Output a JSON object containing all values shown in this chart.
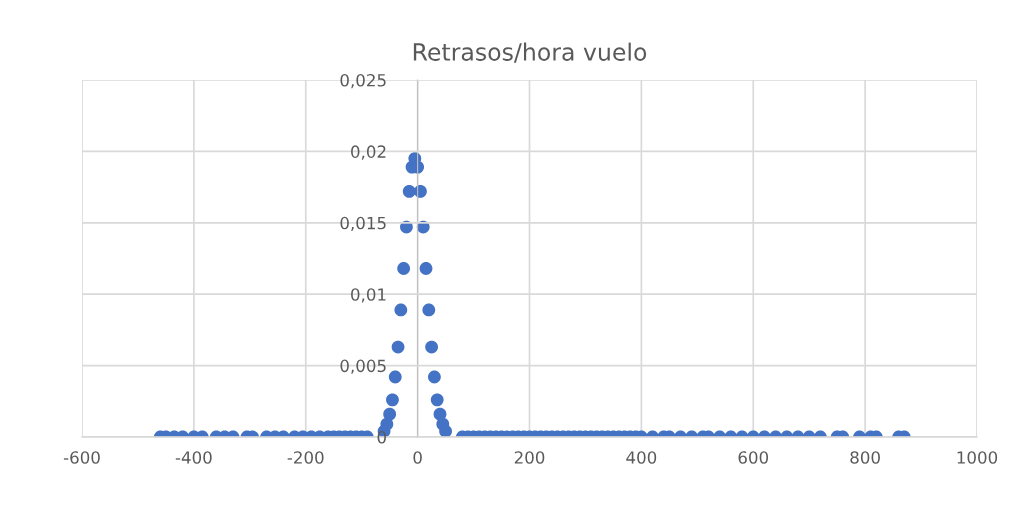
{
  "chart_data": {
    "type": "scatter",
    "title": "Retrasos/hora vuelo",
    "x": [
      -460,
      -450,
      -435,
      -420,
      -400,
      -385,
      -360,
      -345,
      -330,
      -305,
      -295,
      -270,
      -255,
      -240,
      -220,
      -205,
      -190,
      -175,
      -160,
      -150,
      -140,
      -130,
      -120,
      -110,
      -100,
      -90,
      -60,
      -55,
      -50,
      -45,
      -40,
      -35,
      -30,
      -25,
      -20,
      -15,
      -10,
      -5,
      0,
      5,
      10,
      15,
      20,
      25,
      30,
      35,
      40,
      45,
      50,
      80,
      90,
      100,
      110,
      120,
      130,
      140,
      150,
      160,
      170,
      180,
      190,
      200,
      210,
      220,
      230,
      240,
      250,
      260,
      270,
      280,
      290,
      300,
      310,
      320,
      330,
      340,
      350,
      360,
      370,
      380,
      390,
      400,
      420,
      440,
      450,
      470,
      490,
      510,
      520,
      540,
      560,
      580,
      600,
      620,
      640,
      660,
      680,
      700,
      720,
      750,
      760,
      790,
      810,
      820,
      860,
      870
    ],
    "values": [
      0,
      0,
      0,
      0,
      0,
      0,
      0,
      0,
      0,
      0,
      0,
      0,
      0,
      0,
      0,
      0,
      0,
      0,
      0,
      0,
      0,
      0,
      0,
      0,
      0,
      0,
      0.0004,
      0.0009,
      0.0016,
      0.0026,
      0.0042,
      0.0063,
      0.0089,
      0.0118,
      0.0147,
      0.0172,
      0.0189,
      0.0195,
      0.0189,
      0.0172,
      0.0147,
      0.0118,
      0.0089,
      0.0063,
      0.0042,
      0.0026,
      0.0016,
      0.0009,
      0.0004,
      0,
      0,
      0,
      0,
      0,
      0,
      0,
      0,
      0,
      0,
      0,
      0,
      0,
      0,
      0,
      0,
      0,
      0,
      0,
      0,
      0,
      0,
      0,
      0,
      0,
      0,
      0,
      0,
      0,
      0,
      0,
      0,
      0,
      0,
      0,
      0,
      0,
      0,
      0,
      0,
      0,
      0,
      0,
      0,
      0,
      0,
      0,
      0,
      0,
      0,
      0,
      0,
      0,
      0,
      0,
      0,
      0
    ],
    "color": "#4472c4",
    "marker": "circle",
    "xlim": [
      -600,
      1000
    ],
    "xticks": [
      -600,
      -400,
      -200,
      0,
      200,
      400,
      600,
      800,
      1000
    ],
    "ylim": [
      0,
      0.025
    ],
    "yticks": [
      {
        "value": 0,
        "label": "0"
      },
      {
        "value": 0.005,
        "label": "0,005"
      },
      {
        "value": 0.01,
        "label": "0,01"
      },
      {
        "value": 0.015,
        "label": "0,015"
      },
      {
        "value": 0.02,
        "label": "0,02"
      },
      {
        "value": 0.025,
        "label": "0,025"
      }
    ],
    "grid": true
  }
}
